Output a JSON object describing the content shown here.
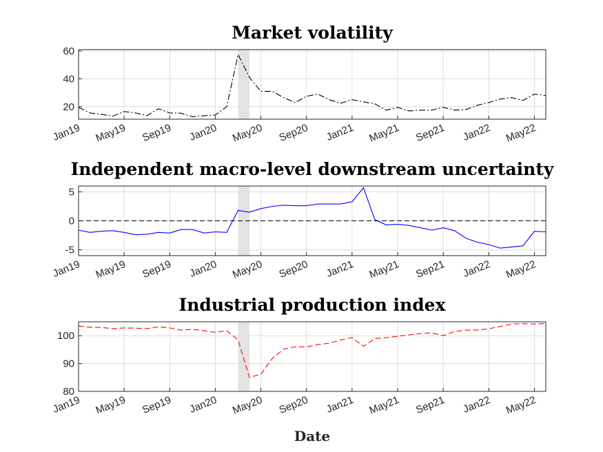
{
  "figure": {
    "xlabel": "Date"
  },
  "chart_data": [
    {
      "type": "line",
      "title": "Market volatility",
      "xlabel": "",
      "ylabel": "",
      "x_tick_labels": [
        "Jan19",
        "May19",
        "Sep19",
        "Jan20",
        "May20",
        "Sep20",
        "Jan21",
        "May21",
        "Sep21",
        "Jan22",
        "May22"
      ],
      "x_start": "Jan19",
      "ylim": [
        11,
        61
      ],
      "yticks": [
        20,
        40,
        60
      ],
      "shaded_period": [
        "Mar20",
        "Apr20"
      ],
      "series": [
        {
          "name": "Market volatility",
          "color": "#000000",
          "style": "dash-dot",
          "values": [
            19.5,
            15.5,
            14.5,
            13.2,
            16.5,
            15.5,
            13.5,
            18.5,
            15.5,
            15.3,
            12.8,
            13.5,
            14.0,
            20.0,
            57.5,
            41.0,
            31.0,
            31.0,
            26.5,
            23.0,
            27.5,
            29.0,
            25.0,
            22.5,
            25.0,
            23.5,
            22.0,
            17.5,
            19.5,
            17.0,
            17.5,
            17.5,
            19.5,
            17.5,
            18.0,
            21.0,
            23.0,
            25.5,
            26.5,
            24.5,
            29.0,
            28.0
          ]
        }
      ]
    },
    {
      "type": "line",
      "title": "Independent macro-level downstream uncertainty",
      "xlabel": "",
      "ylabel": "",
      "x_tick_labels": [
        "Jan19",
        "May19",
        "Sep19",
        "Jan20",
        "May20",
        "Sep20",
        "Jan21",
        "May21",
        "Sep21",
        "Jan22",
        "May22"
      ],
      "x_start": "Jan19",
      "ylim": [
        -6,
        6
      ],
      "yticks": [
        -5,
        0,
        5
      ],
      "zero_line": true,
      "shaded_period": [
        "Mar20",
        "Apr20"
      ],
      "series": [
        {
          "name": "Independent macro-level downstream uncertainty",
          "color": "#0000ff",
          "style": "solid",
          "values": [
            -1.6,
            -2.0,
            -1.8,
            -1.7,
            -2.0,
            -2.4,
            -2.3,
            -2.0,
            -2.1,
            -1.5,
            -1.5,
            -2.1,
            -1.9,
            -2.0,
            1.8,
            1.5,
            2.1,
            2.5,
            2.7,
            2.6,
            2.6,
            2.9,
            2.9,
            2.9,
            3.3,
            5.7,
            0.2,
            -0.7,
            -0.6,
            -0.8,
            -1.2,
            -1.6,
            -1.2,
            -1.7,
            -3.0,
            -3.7,
            -4.1,
            -4.7,
            -4.5,
            -4.3,
            -1.8,
            -1.9
          ]
        }
      ]
    },
    {
      "type": "line",
      "title": "Industrial production index",
      "xlabel": "Date",
      "ylabel": "",
      "x_tick_labels": [
        "Jan19",
        "May19",
        "Sep19",
        "Jan20",
        "May20",
        "Sep20",
        "Jan21",
        "May21",
        "Sep21",
        "Jan22",
        "May22"
      ],
      "x_start": "Jan19",
      "ylim": [
        80,
        105
      ],
      "yticks": [
        80,
        90,
        100
      ],
      "shaded_period": [
        "Mar20",
        "Apr20"
      ],
      "series": [
        {
          "name": "Industrial production index",
          "color": "#ff0000",
          "style": "dashed",
          "values": [
            103.5,
            103.0,
            103.0,
            102.5,
            102.8,
            102.7,
            102.5,
            103.2,
            102.8,
            102.0,
            102.3,
            101.8,
            101.2,
            101.8,
            98.5,
            85.0,
            86.2,
            91.8,
            95.2,
            96.0,
            96.0,
            96.8,
            97.3,
            98.5,
            99.3,
            96.2,
            99.0,
            99.3,
            99.8,
            100.3,
            100.8,
            101.0,
            100.0,
            101.5,
            102.0,
            102.0,
            102.5,
            103.3,
            104.2,
            104.3,
            104.2,
            104.3
          ]
        }
      ]
    }
  ]
}
